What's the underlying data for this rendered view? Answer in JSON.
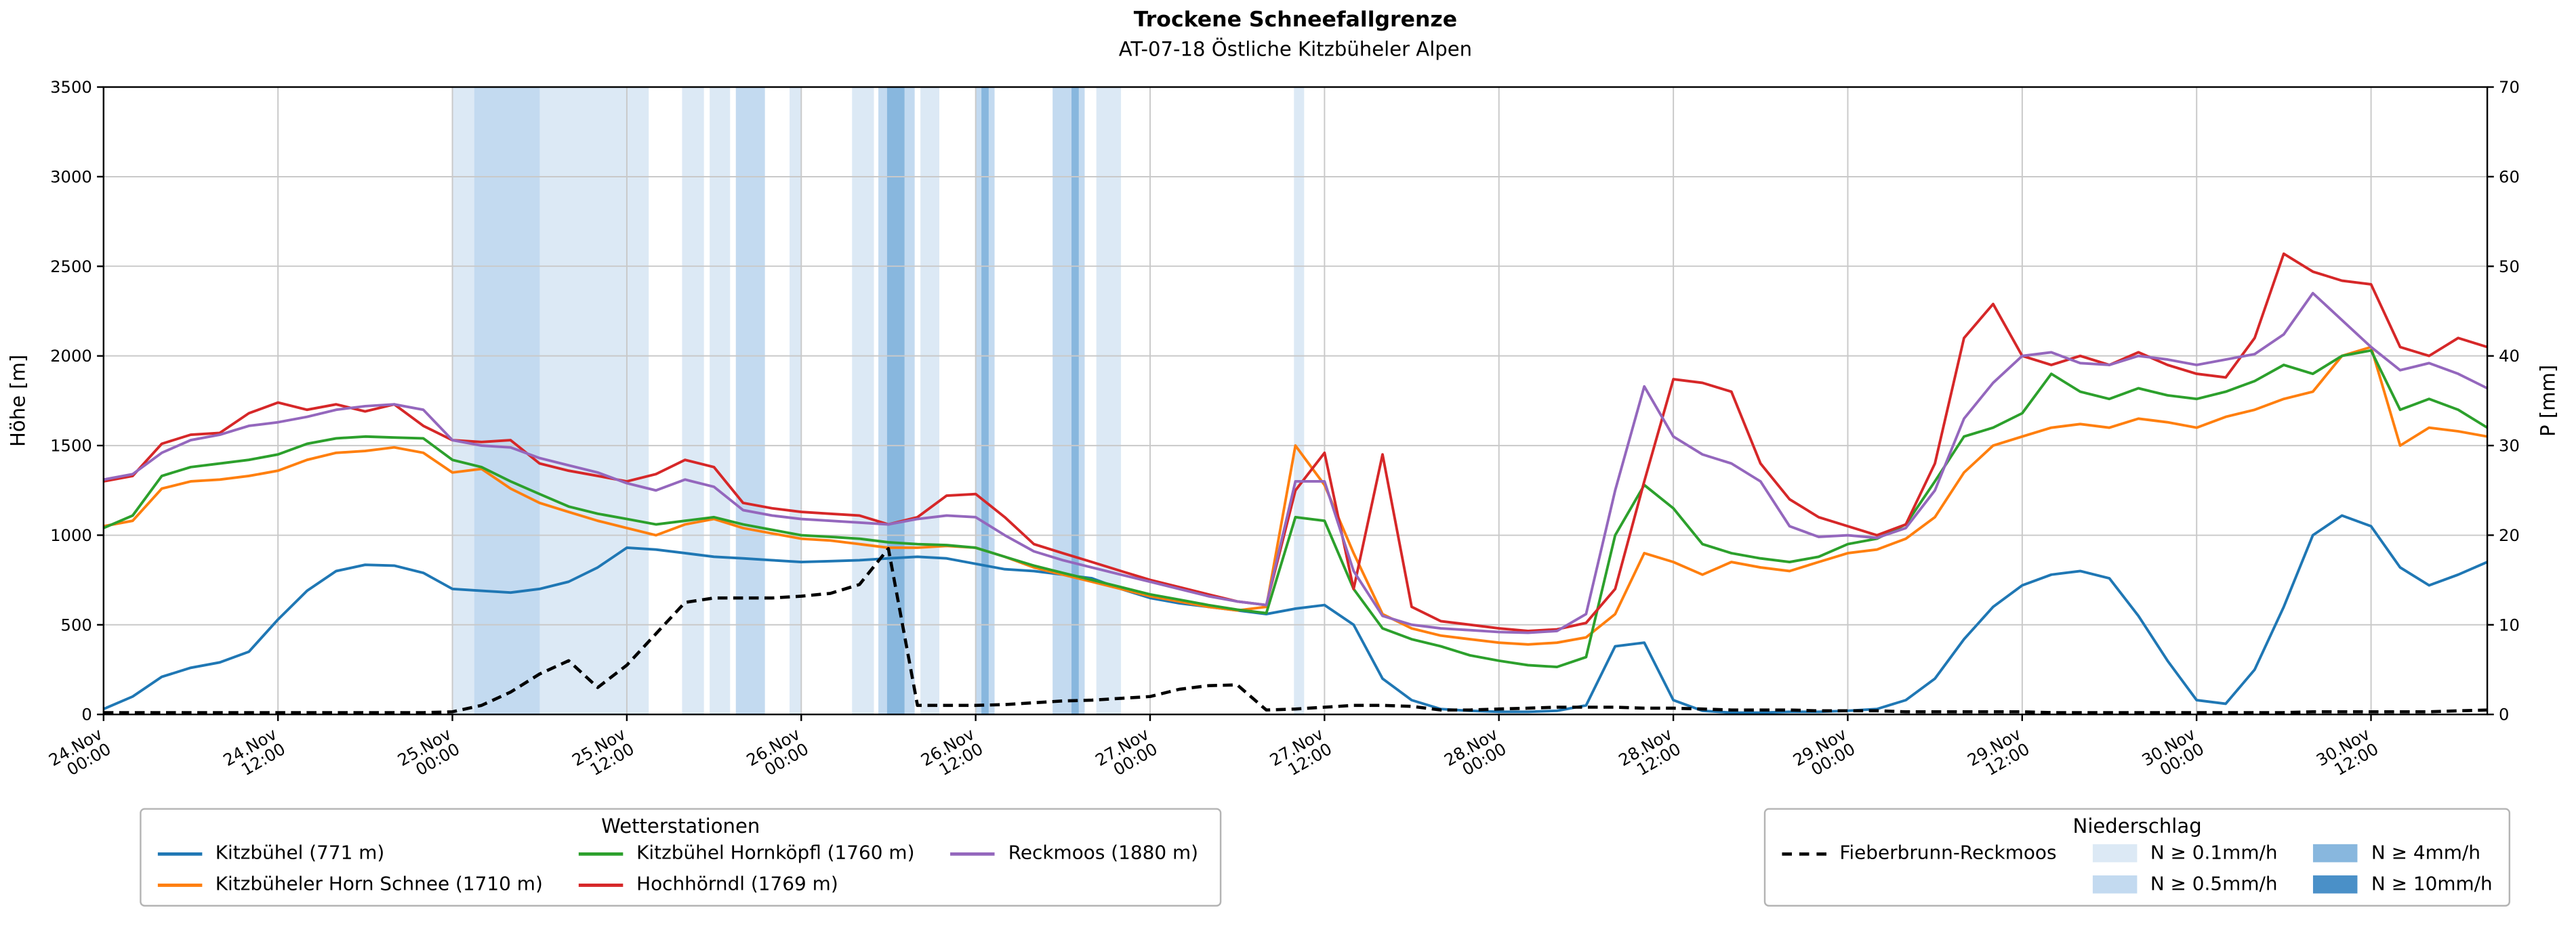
{
  "title": "Trockene Schneefallgrenze",
  "subtitle": "AT-07-18 Östliche Kitzbüheler Alpen",
  "chart_data": {
    "type": "line",
    "x_unit": "hours since 24.Nov 00:00",
    "xlim": [
      0,
      164
    ],
    "ylim_left": [
      0,
      3500
    ],
    "ylim_right": [
      0,
      70
    ],
    "ylabel_left": "Höhe [m]",
    "ylabel_right": "P [mm]",
    "grid": true,
    "y_ticks_left": [
      0,
      500,
      1000,
      1500,
      2000,
      2500,
      3000,
      3500
    ],
    "y_ticks_right": [
      0,
      10,
      20,
      30,
      40,
      50,
      60,
      70
    ],
    "x_ticks": [
      {
        "h": 0,
        "date": "24.Nov",
        "time": "00:00"
      },
      {
        "h": 12,
        "date": "24.Nov",
        "time": "12:00"
      },
      {
        "h": 24,
        "date": "25.Nov",
        "time": "00:00"
      },
      {
        "h": 36,
        "date": "25.Nov",
        "time": "12:00"
      },
      {
        "h": 48,
        "date": "26.Nov",
        "time": "00:00"
      },
      {
        "h": 60,
        "date": "26.Nov",
        "time": "12:00"
      },
      {
        "h": 72,
        "date": "27.Nov",
        "time": "00:00"
      },
      {
        "h": 84,
        "date": "27.Nov",
        "time": "12:00"
      },
      {
        "h": 96,
        "date": "28.Nov",
        "time": "00:00"
      },
      {
        "h": 108,
        "date": "28.Nov",
        "time": "12:00"
      },
      {
        "h": 120,
        "date": "29.Nov",
        "time": "00:00"
      },
      {
        "h": 132,
        "date": "29.Nov",
        "time": "12:00"
      },
      {
        "h": 144,
        "date": "30.Nov",
        "time": "00:00"
      },
      {
        "h": 156,
        "date": "30.Nov",
        "time": "12:00"
      }
    ],
    "x": [
      0,
      2,
      4,
      6,
      8,
      10,
      12,
      14,
      16,
      18,
      20,
      22,
      24,
      26,
      28,
      30,
      32,
      34,
      36,
      38,
      40,
      42,
      44,
      46,
      48,
      50,
      52,
      54,
      56,
      58,
      60,
      62,
      64,
      66,
      68,
      70,
      72,
      74,
      76,
      78,
      80,
      82,
      84,
      86,
      88,
      90,
      92,
      94,
      96,
      98,
      100,
      102,
      104,
      106,
      108,
      110,
      112,
      114,
      116,
      118,
      120,
      122,
      124,
      126,
      128,
      130,
      132,
      134,
      136,
      138,
      140,
      142,
      144,
      146,
      148,
      150,
      152,
      154,
      156,
      158,
      160,
      162,
      164
    ],
    "series": [
      {
        "name": "Kitzbühel (771 m)",
        "color": "#1f77b4",
        "axis": "left",
        "dashed": false,
        "values": [
          30,
          100,
          210,
          260,
          290,
          350,
          530,
          690,
          800,
          835,
          830,
          790,
          700,
          690,
          680,
          700,
          740,
          820,
          930,
          920,
          900,
          880,
          870,
          860,
          850,
          855,
          860,
          870,
          880,
          870,
          840,
          810,
          800,
          780,
          760,
          700,
          650,
          620,
          600,
          580,
          560,
          590,
          610,
          500,
          200,
          80,
          30,
          20,
          15,
          15,
          20,
          50,
          380,
          400,
          80,
          20,
          10,
          10,
          15,
          15,
          20,
          30,
          80,
          200,
          420,
          600,
          720,
          780,
          800,
          760,
          550,
          300,
          80,
          60,
          250,
          600,
          1000,
          1110,
          1050,
          820,
          720,
          780,
          850
        ]
      },
      {
        "name": "Kitzbüheler Horn Schnee (1710 m)",
        "color": "#ff7f0e",
        "axis": "left",
        "dashed": false,
        "values": [
          1050,
          1080,
          1260,
          1300,
          1310,
          1330,
          1360,
          1420,
          1460,
          1470,
          1490,
          1460,
          1350,
          1370,
          1260,
          1180,
          1130,
          1080,
          1040,
          1000,
          1060,
          1090,
          1040,
          1010,
          980,
          970,
          950,
          930,
          930,
          940,
          930,
          880,
          820,
          780,
          740,
          700,
          660,
          630,
          600,
          580,
          600,
          1500,
          1280,
          900,
          560,
          480,
          440,
          420,
          400,
          390,
          400,
          430,
          560,
          900,
          850,
          780,
          850,
          820,
          800,
          850,
          900,
          920,
          980,
          1100,
          1350,
          1500,
          1550,
          1600,
          1620,
          1600,
          1650,
          1630,
          1600,
          1660,
          1700,
          1760,
          1800,
          2000,
          2050,
          1500,
          1600,
          1580,
          1550
        ]
      },
      {
        "name": "Kitzbühel Hornköpfl (1760 m)",
        "color": "#2ca02c",
        "axis": "left",
        "dashed": false,
        "values": [
          1040,
          1110,
          1330,
          1380,
          1400,
          1420,
          1450,
          1510,
          1540,
          1550,
          1545,
          1540,
          1420,
          1380,
          1300,
          1230,
          1160,
          1120,
          1090,
          1060,
          1080,
          1100,
          1060,
          1030,
          1000,
          990,
          980,
          960,
          950,
          945,
          930,
          880,
          830,
          790,
          750,
          710,
          670,
          640,
          610,
          585,
          565,
          1100,
          1080,
          700,
          480,
          420,
          380,
          330,
          300,
          275,
          265,
          320,
          1000,
          1280,
          1150,
          950,
          900,
          870,
          850,
          880,
          950,
          980,
          1060,
          1300,
          1550,
          1600,
          1680,
          1900,
          1800,
          1760,
          1820,
          1780,
          1760,
          1800,
          1860,
          1950,
          1900,
          2000,
          2030,
          1700,
          1760,
          1700,
          1600
        ]
      },
      {
        "name": "Hochhörndl (1769 m)",
        "color": "#d62728",
        "axis": "left",
        "dashed": false,
        "values": [
          1300,
          1330,
          1510,
          1560,
          1570,
          1680,
          1740,
          1700,
          1730,
          1690,
          1730,
          1610,
          1530,
          1520,
          1530,
          1400,
          1360,
          1330,
          1300,
          1340,
          1420,
          1380,
          1180,
          1150,
          1130,
          1120,
          1110,
          1060,
          1100,
          1220,
          1230,
          1100,
          950,
          900,
          850,
          800,
          750,
          710,
          670,
          630,
          610,
          1250,
          1460,
          700,
          1450,
          600,
          520,
          500,
          480,
          465,
          475,
          510,
          700,
          1300,
          1870,
          1850,
          1800,
          1400,
          1200,
          1100,
          1050,
          1000,
          1060,
          1400,
          2100,
          2290,
          2000,
          1950,
          2000,
          1950,
          2020,
          1950,
          1900,
          1880,
          2100,
          2570,
          2470,
          2420,
          2400,
          2050,
          2000,
          2100,
          2050
        ]
      },
      {
        "name": "Reckmoos (1880 m)",
        "color": "#9467bd",
        "axis": "left",
        "dashed": false,
        "values": [
          1310,
          1340,
          1460,
          1530,
          1560,
          1610,
          1630,
          1660,
          1700,
          1720,
          1730,
          1700,
          1530,
          1500,
          1490,
          1430,
          1390,
          1350,
          1290,
          1250,
          1310,
          1270,
          1140,
          1110,
          1090,
          1080,
          1070,
          1060,
          1090,
          1110,
          1100,
          1000,
          910,
          860,
          820,
          780,
          740,
          700,
          660,
          630,
          610,
          1300,
          1300,
          800,
          550,
          500,
          480,
          470,
          460,
          455,
          465,
          560,
          1250,
          1830,
          1550,
          1450,
          1400,
          1300,
          1050,
          990,
          1000,
          985,
          1040,
          1250,
          1650,
          1850,
          2000,
          2020,
          1960,
          1950,
          2000,
          1980,
          1950,
          1980,
          2010,
          2120,
          2350,
          2200,
          2050,
          1920,
          1960,
          1900,
          1820
        ]
      },
      {
        "name": "Fieberbrunn-Reckmoos",
        "color": "#000000",
        "axis": "right",
        "dashed": true,
        "values": [
          0.2,
          0.2,
          0.2,
          0.2,
          0.2,
          0.2,
          0.2,
          0.2,
          0.2,
          0.2,
          0.2,
          0.2,
          0.3,
          1,
          2.5,
          4.5,
          6,
          3,
          5.5,
          9,
          12.5,
          13,
          13,
          13,
          13.2,
          13.5,
          14.5,
          18.5,
          1,
          1,
          1,
          1.1,
          1.3,
          1.5,
          1.6,
          1.8,
          2,
          2.8,
          3.2,
          3.3,
          0.5,
          0.6,
          0.8,
          1,
          1,
          0.9,
          0.5,
          0.5,
          0.6,
          0.7,
          0.8,
          0.8,
          0.8,
          0.7,
          0.7,
          0.6,
          0.5,
          0.5,
          0.5,
          0.4,
          0.4,
          0.4,
          0.3,
          0.3,
          0.3,
          0.3,
          0.3,
          0.2,
          0.2,
          0.2,
          0.2,
          0.2,
          0.2,
          0.2,
          0.2,
          0.2,
          0.3,
          0.3,
          0.3,
          0.3,
          0.3,
          0.4,
          0.5
        ]
      }
    ],
    "band_levels": [
      {
        "level": 1,
        "label": "N ≥ 0.1mm/h",
        "color": "#dce9f5"
      },
      {
        "level": 2,
        "label": "N ≥ 0.5mm/h",
        "color": "#c3daf0"
      },
      {
        "level": 3,
        "label": "N ≥ 4mm/h",
        "color": "#88b7de"
      },
      {
        "level": 4,
        "label": "N ≥ 10mm/h",
        "color": "#4a90c8"
      }
    ],
    "precip_bands": [
      {
        "start": 24.0,
        "end": 37.5,
        "level": 1
      },
      {
        "start": 25.5,
        "end": 30.0,
        "level": 2
      },
      {
        "start": 39.8,
        "end": 41.3,
        "level": 1
      },
      {
        "start": 41.7,
        "end": 43.1,
        "level": 1
      },
      {
        "start": 43.5,
        "end": 45.5,
        "level": 2
      },
      {
        "start": 47.2,
        "end": 48.0,
        "level": 1
      },
      {
        "start": 51.5,
        "end": 53.0,
        "level": 1
      },
      {
        "start": 53.3,
        "end": 55.8,
        "level": 2
      },
      {
        "start": 53.9,
        "end": 55.1,
        "level": 3
      },
      {
        "start": 56.2,
        "end": 57.5,
        "level": 1
      },
      {
        "start": 60.0,
        "end": 61.3,
        "level": 2
      },
      {
        "start": 60.4,
        "end": 60.9,
        "level": 3
      },
      {
        "start": 65.3,
        "end": 67.5,
        "level": 2
      },
      {
        "start": 66.6,
        "end": 67.1,
        "level": 3
      },
      {
        "start": 68.3,
        "end": 70.0,
        "level": 1
      },
      {
        "start": 81.9,
        "end": 82.6,
        "level": 1
      }
    ]
  },
  "legends": {
    "stations": {
      "title": "Wetterstationen",
      "columns": [
        [
          0,
          1
        ],
        [
          2,
          3
        ],
        [
          4
        ]
      ]
    },
    "precip": {
      "title": "Niederschlag",
      "line_series_index": 5
    }
  }
}
